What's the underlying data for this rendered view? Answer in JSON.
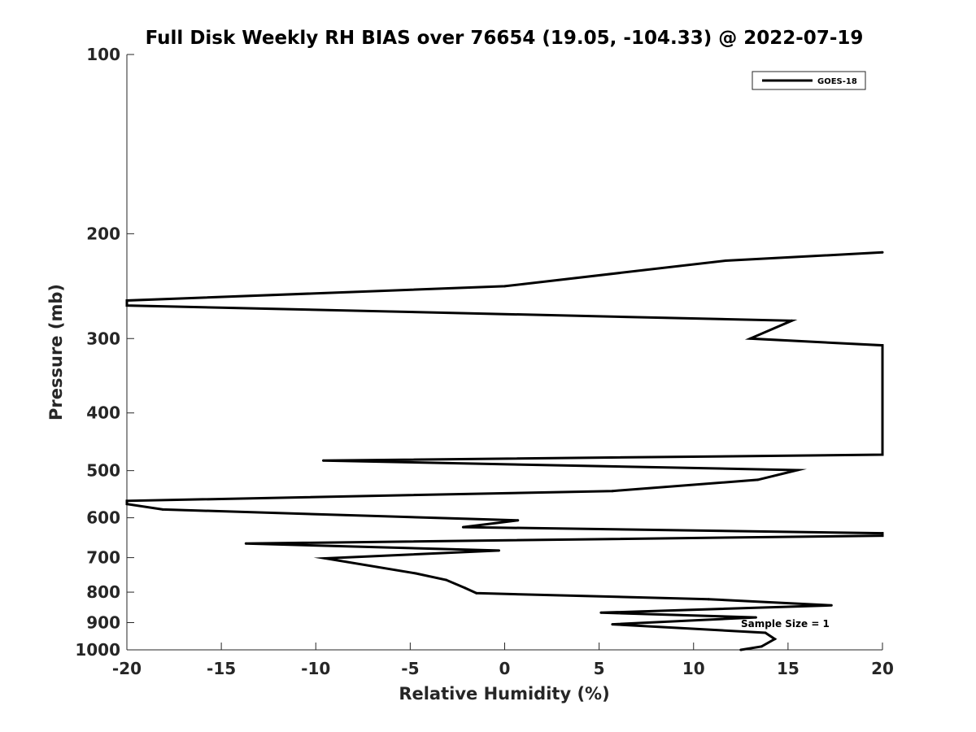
{
  "chart_data": {
    "type": "line",
    "title": "Full Disk Weekly RH BIAS over 76654 (19.05, -104.33) @ 2022-07-19",
    "xlabel": "Relative Humidity (%)",
    "ylabel": "Pressure (mb)",
    "xlim": [
      -20,
      20
    ],
    "ylim": [
      100,
      1000
    ],
    "y_scale": "log",
    "y_reversed": true,
    "grid": false,
    "x_ticks": [
      {
        "value": -20,
        "label": "-20"
      },
      {
        "value": -15,
        "label": "-15"
      },
      {
        "value": -10,
        "label": "-10"
      },
      {
        "value": -5,
        "label": "-5"
      },
      {
        "value": 0,
        "label": "0"
      },
      {
        "value": 5,
        "label": "5"
      },
      {
        "value": 10,
        "label": "10"
      },
      {
        "value": 15,
        "label": "15"
      },
      {
        "value": 20,
        "label": "20"
      }
    ],
    "y_ticks": [
      {
        "value": 100,
        "label": "100"
      },
      {
        "value": 200,
        "label": "200"
      },
      {
        "value": 300,
        "label": "300"
      },
      {
        "value": 400,
        "label": "400"
      },
      {
        "value": 500,
        "label": "500"
      },
      {
        "value": 600,
        "label": "600"
      },
      {
        "value": 700,
        "label": "700"
      },
      {
        "value": 800,
        "label": "800"
      },
      {
        "value": 900,
        "label": "900"
      },
      {
        "value": 1000,
        "label": "1000"
      }
    ],
    "legend_position": "top-right",
    "series": [
      {
        "name": "GOES-18",
        "color": "#000000",
        "points": [
          {
            "x": 20,
            "y": 215
          },
          {
            "x": 11.7,
            "y": 222
          },
          {
            "x": 0,
            "y": 245
          },
          {
            "x": -20,
            "y": 259
          },
          {
            "x": -20,
            "y": 264
          },
          {
            "x": 15.2,
            "y": 280
          },
          {
            "x": 13,
            "y": 300
          },
          {
            "x": 20,
            "y": 308
          },
          {
            "x": 20,
            "y": 470
          },
          {
            "x": -9.6,
            "y": 481
          },
          {
            "x": 15.5,
            "y": 499
          },
          {
            "x": 13.4,
            "y": 518
          },
          {
            "x": 5.7,
            "y": 541
          },
          {
            "x": -20,
            "y": 562
          },
          {
            "x": -20,
            "y": 569
          },
          {
            "x": -18.1,
            "y": 581
          },
          {
            "x": 0.7,
            "y": 606
          },
          {
            "x": -2.2,
            "y": 622
          },
          {
            "x": 20,
            "y": 637
          },
          {
            "x": 20,
            "y": 643
          },
          {
            "x": -13.7,
            "y": 663
          },
          {
            "x": -0.3,
            "y": 681
          },
          {
            "x": -9.5,
            "y": 702
          },
          {
            "x": -4.7,
            "y": 744
          },
          {
            "x": -3.1,
            "y": 763
          },
          {
            "x": -2.1,
            "y": 787
          },
          {
            "x": -1.5,
            "y": 803
          },
          {
            "x": 10.8,
            "y": 822
          },
          {
            "x": 17.3,
            "y": 842
          },
          {
            "x": 5.1,
            "y": 866
          },
          {
            "x": 13.3,
            "y": 882
          },
          {
            "x": 5.7,
            "y": 906
          },
          {
            "x": 13.8,
            "y": 936
          },
          {
            "x": 14.3,
            "y": 959
          },
          {
            "x": 13.6,
            "y": 987
          },
          {
            "x": 12.5,
            "y": 1000
          }
        ]
      }
    ],
    "annotations": [
      {
        "text": "Sample Size = 1",
        "x": 12.5,
        "y": 905
      }
    ]
  }
}
